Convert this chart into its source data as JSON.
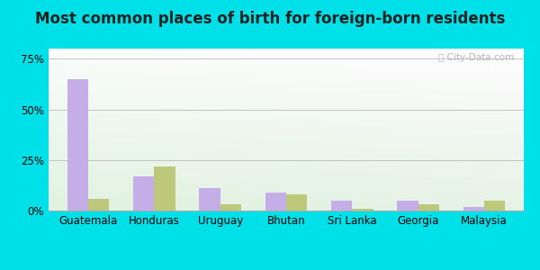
{
  "title": "Most common places of birth for foreign-born residents",
  "categories": [
    "Guatemala",
    "Honduras",
    "Uruguay",
    "Bhutan",
    "Sri Lanka",
    "Georgia",
    "Malaysia"
  ],
  "zip_values": [
    65,
    17,
    11,
    9,
    5,
    5,
    2
  ],
  "tn_values": [
    6,
    22,
    3,
    8,
    1,
    3,
    5
  ],
  "zip_color": "#c5aee8",
  "tn_color": "#bec87a",
  "ylim": [
    0,
    80
  ],
  "yticks": [
    0,
    25,
    50,
    75
  ],
  "ytick_labels": [
    "0%",
    "25%",
    "50%",
    "75%"
  ],
  "background_outer": "#00e0e8",
  "bar_width": 0.32,
  "title_fontsize": 12,
  "axis_fontsize": 8.5,
  "legend_fontsize": 9
}
